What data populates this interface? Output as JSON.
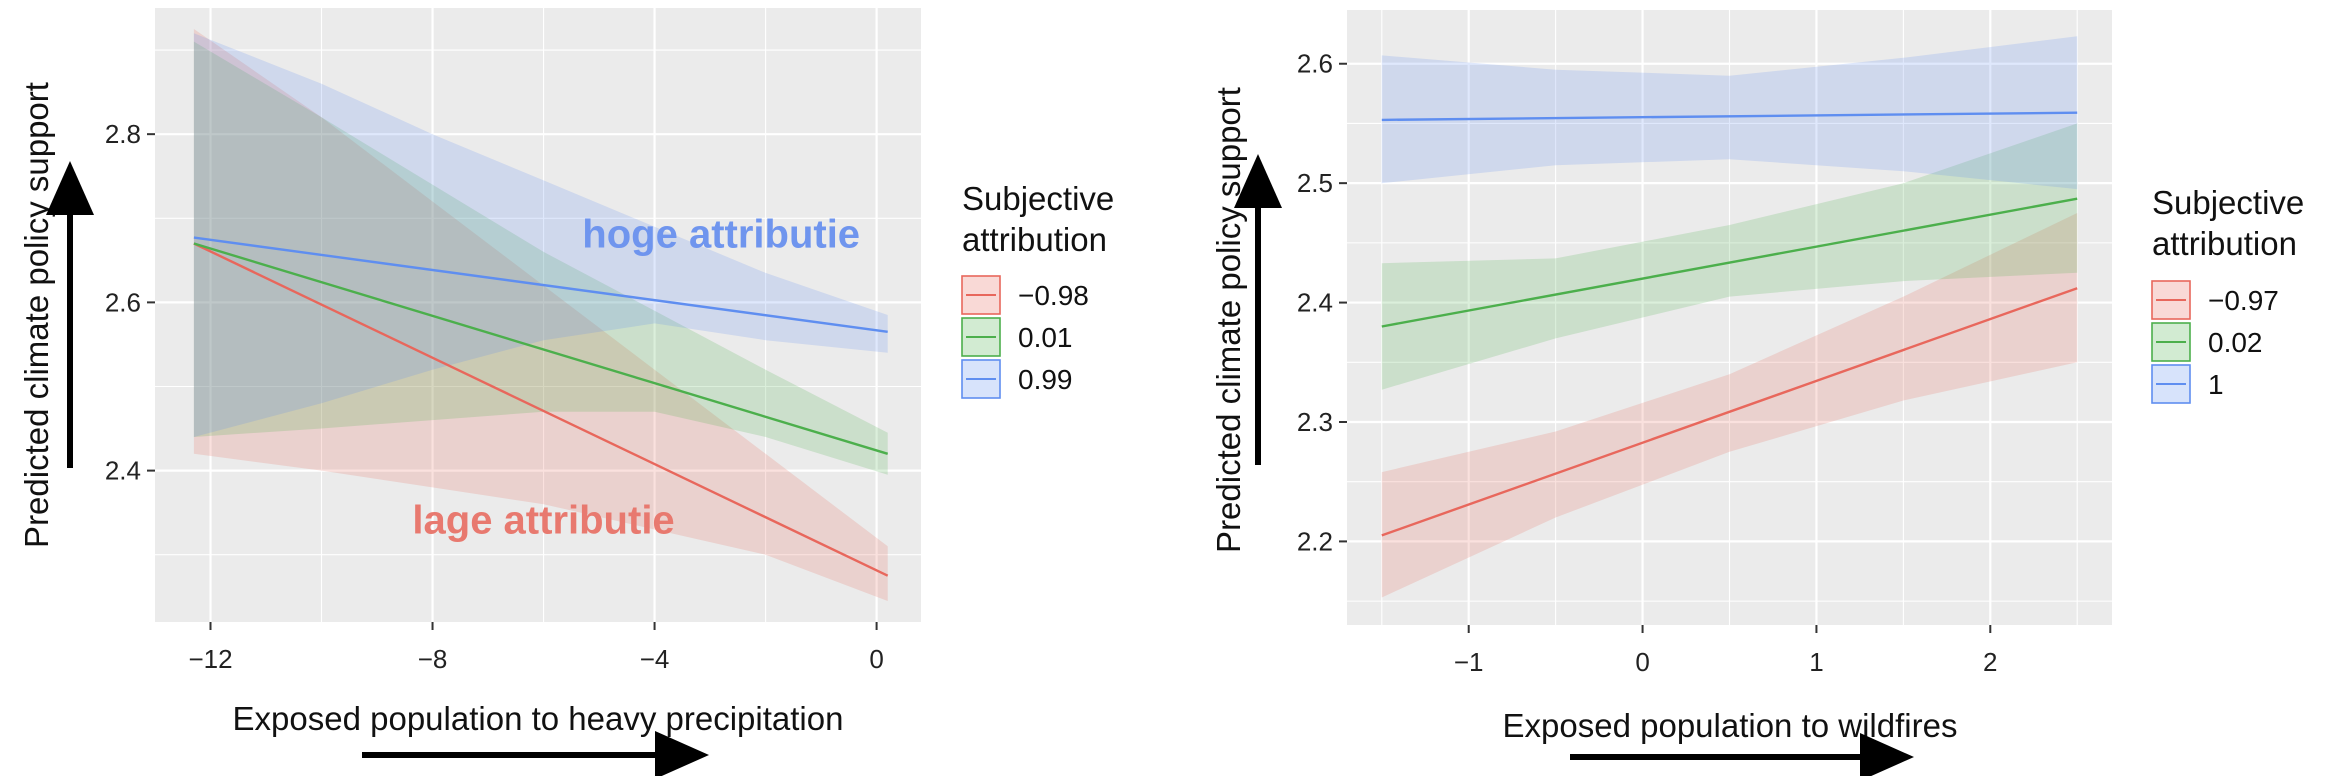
{
  "chart_data": [
    {
      "type": "line",
      "xlabel": "Exposed population to heavy precipitation",
      "ylabel": "Predicted climate policy support",
      "xlim": [
        -13.0,
        0.8
      ],
      "ylim": [
        2.22,
        2.95
      ],
      "xticks": [
        -12,
        -8,
        -4,
        0
      ],
      "xtick_labels": [
        "−12",
        "−8",
        "−4",
        "0"
      ],
      "yticks": [
        2.4,
        2.6,
        2.8
      ],
      "ytick_labels": [
        "2.4",
        "2.6",
        "2.8"
      ],
      "grid": true,
      "legend": {
        "title_lines": [
          "Subjective",
          "attribution"
        ],
        "placement": "right"
      },
      "annotations": [
        {
          "text": "hoge attributie",
          "x": -2.8,
          "y": 2.665,
          "color": "#6f95ee"
        },
        {
          "text": "lage attributie",
          "x": -6.0,
          "y": 2.325,
          "color": "#e8796f"
        }
      ],
      "series": [
        {
          "name": "−0.98",
          "color": "#e8675c",
          "x": [
            -12.3,
            0.2
          ],
          "y": [
            2.67,
            2.275
          ],
          "band_x": [
            -12.3,
            -10,
            -8,
            -6,
            -4,
            -2,
            0.2
          ],
          "band_lower": [
            2.42,
            2.4,
            2.38,
            2.36,
            2.33,
            2.3,
            2.245
          ],
          "band_upper": [
            2.925,
            2.82,
            2.72,
            2.62,
            2.52,
            2.42,
            2.31
          ]
        },
        {
          "name": "0.01",
          "color": "#4caf4c",
          "x": [
            -12.3,
            0.2
          ],
          "y": [
            2.67,
            2.42
          ],
          "band_x": [
            -12.3,
            -10,
            -8,
            -6,
            -4,
            -2,
            0.2
          ],
          "band_lower": [
            2.44,
            2.45,
            2.46,
            2.47,
            2.47,
            2.44,
            2.395
          ],
          "band_upper": [
            2.91,
            2.82,
            2.74,
            2.66,
            2.59,
            2.52,
            2.445
          ]
        },
        {
          "name": "0.99",
          "color": "#5f8ef0",
          "x": [
            -12.3,
            0.2
          ],
          "y": [
            2.677,
            2.565
          ],
          "band_x": [
            -12.3,
            -10,
            -8,
            -6,
            -4,
            -2,
            0.2
          ],
          "band_lower": [
            2.44,
            2.48,
            2.52,
            2.555,
            2.575,
            2.555,
            2.54
          ],
          "band_upper": [
            2.92,
            2.86,
            2.8,
            2.745,
            2.69,
            2.635,
            2.585
          ]
        }
      ]
    },
    {
      "type": "line",
      "xlabel": "Exposed population to wildfires",
      "ylabel": "Predicted climate policy support",
      "xlim": [
        -1.7,
        2.7
      ],
      "ylim": [
        2.13,
        2.645
      ],
      "xticks": [
        -1,
        0,
        1,
        2
      ],
      "xtick_labels": [
        "−1",
        "0",
        "1",
        "2"
      ],
      "yticks": [
        2.2,
        2.3,
        2.4,
        2.5,
        2.6
      ],
      "ytick_labels": [
        "2.2",
        "2.3",
        "2.4",
        "2.5",
        "2.6"
      ],
      "grid": true,
      "legend": {
        "title_lines": [
          "Subjective",
          "attribution"
        ],
        "placement": "right"
      },
      "series": [
        {
          "name": "−0.97",
          "color": "#e8675c",
          "x": [
            -1.5,
            2.5
          ],
          "y": [
            2.205,
            2.412
          ],
          "band_x": [
            -1.5,
            -0.5,
            0.5,
            1.5,
            2.5
          ],
          "band_lower": [
            2.153,
            2.22,
            2.275,
            2.318,
            2.35
          ],
          "band_upper": [
            2.258,
            2.292,
            2.34,
            2.405,
            2.475
          ]
        },
        {
          "name": "0.02",
          "color": "#4caf4c",
          "x": [
            -1.5,
            2.5
          ],
          "y": [
            2.38,
            2.487
          ],
          "band_x": [
            -1.5,
            -0.5,
            0.5,
            1.5,
            2.5
          ],
          "band_lower": [
            2.327,
            2.37,
            2.405,
            2.418,
            2.425
          ],
          "band_upper": [
            2.433,
            2.437,
            2.465,
            2.5,
            2.55
          ]
        },
        {
          "name": "1",
          "color": "#5f8ef0",
          "x": [
            -1.5,
            2.5
          ],
          "y": [
            2.553,
            2.559
          ],
          "band_x": [
            -1.5,
            -0.5,
            0.5,
            1.5,
            2.5
          ],
          "band_lower": [
            2.5,
            2.515,
            2.52,
            2.51,
            2.495
          ],
          "band_upper": [
            2.607,
            2.595,
            2.59,
            2.605,
            2.623
          ]
        }
      ]
    }
  ]
}
